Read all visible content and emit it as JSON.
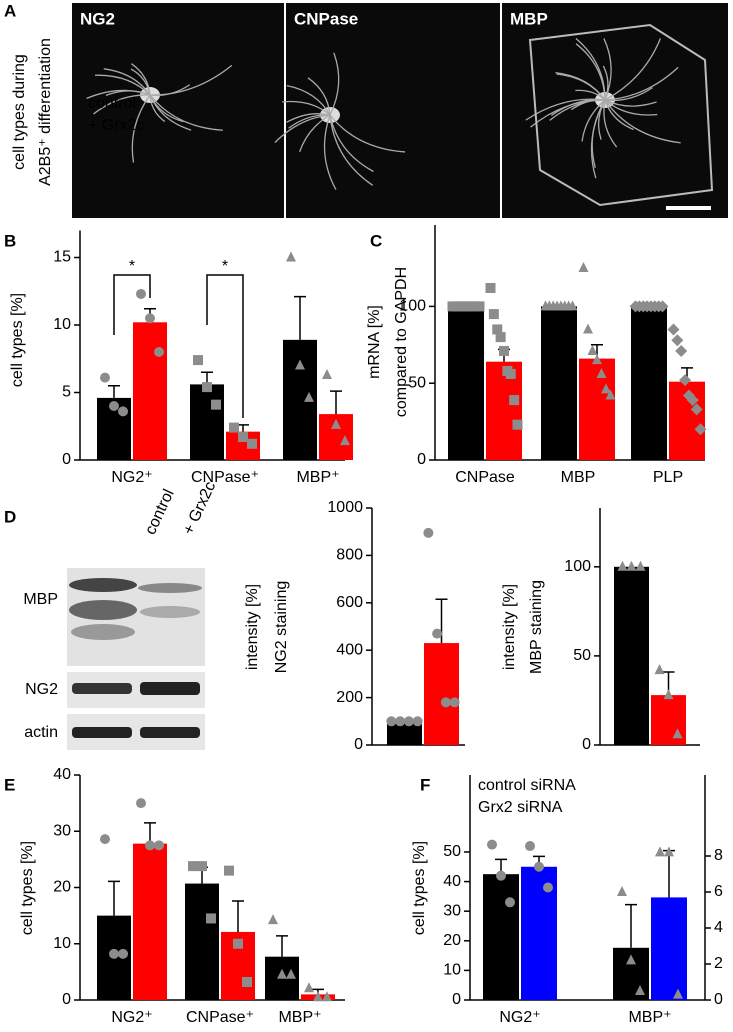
{
  "panel_labels": [
    "A",
    "B",
    "C",
    "D",
    "E",
    "F"
  ],
  "micrographs": {
    "side_label": [
      "cell types during",
      "A2B5⁺ differentiation"
    ],
    "images": [
      "NG2",
      "CNPase",
      "MBP"
    ]
  },
  "blot": {
    "columns": [
      "control",
      "+ Grx2c"
    ],
    "rows": [
      "MBP",
      "NG2",
      "actin"
    ]
  },
  "chart_data": [
    {
      "type": "bar",
      "ylabel": [
        "cell types [%]"
      ],
      "categories": [
        "NG2⁺",
        "CNPase⁺",
        "MBP⁺"
      ],
      "markers": [
        "circle",
        "square",
        "triangle"
      ],
      "ylim": [
        0,
        17
      ],
      "yticks": [
        0,
        5,
        10,
        15
      ],
      "annotations": [
        "*",
        "*"
      ],
      "series": [
        {
          "name": "control",
          "color": "#000000",
          "values": [
            4.6,
            5.6,
            8.9
          ],
          "errors": [
            0.9,
            0.9,
            3.2
          ],
          "points": [
            [
              6.1,
              4.0,
              3.6
            ],
            [
              7.4,
              5.4,
              4.1
            ],
            [
              15.0,
              7.0,
              4.6
            ]
          ]
        },
        {
          "name": "+ Grx2c",
          "color": "#ff0000",
          "values": [
            10.2,
            2.1,
            3.4
          ],
          "errors": [
            1.0,
            0.5,
            1.7
          ],
          "points": [
            [
              12.3,
              10.5,
              8.0
            ],
            [
              2.4,
              1.7,
              1.2
            ],
            [
              6.3,
              2.6,
              1.4
            ]
          ]
        }
      ]
    },
    {
      "type": "bar",
      "ylabel": [
        "mRNA [%]",
        "compared to GAPDH"
      ],
      "categories": [
        "CNPase",
        "MBP",
        "PLP"
      ],
      "markers": [
        "square",
        "triangle",
        "diamond"
      ],
      "ylim": [
        0,
        153
      ],
      "yticks": [
        0,
        50,
        100
      ],
      "series": [
        {
          "name": "control",
          "color": "#000000",
          "values": [
            100,
            100,
            100
          ],
          "errors": [
            0,
            0,
            0
          ],
          "points": [
            [
              100,
              100,
              100,
              100,
              100,
              100,
              100,
              100
            ],
            [
              100,
              100,
              100,
              100,
              100,
              100,
              100,
              100
            ],
            [
              100,
              100,
              100,
              100,
              100,
              100,
              100,
              100
            ]
          ]
        },
        {
          "name": "+ Grx2c",
          "color": "#ff0000",
          "values": [
            64,
            66,
            51
          ],
          "errors": [
            8,
            9,
            9
          ],
          "points": [
            [
              112,
              95,
              85,
              80,
              71,
              58,
              56,
              39,
              23
            ],
            [
              125,
              85,
              71,
              65,
              56,
              46,
              42
            ],
            [
              85,
              78,
              71,
              52,
              42,
              39,
              33,
              20
            ]
          ]
        }
      ]
    },
    {
      "type": "bar",
      "ylabel": [
        "intensity [%]",
        "NG2 staining"
      ],
      "markers": [
        "circle"
      ],
      "ylim": [
        0,
        1000
      ],
      "yticks": [
        0,
        200,
        400,
        600,
        800,
        1000
      ],
      "series": [
        {
          "name": "control",
          "color": "#000000",
          "values": [
            100
          ],
          "errors": [
            0
          ],
          "points": [
            [
              100,
              100,
              100,
              100
            ]
          ]
        },
        {
          "name": "+ Grx2c",
          "color": "#ff0000",
          "values": [
            430
          ],
          "errors": [
            185
          ],
          "points": [
            [
              895,
              470,
              180,
              180
            ]
          ]
        }
      ]
    },
    {
      "type": "bar",
      "ylabel": [
        "intensity [%]",
        "MBP staining"
      ],
      "markers": [
        "triangle"
      ],
      "ylim": [
        0,
        133
      ],
      "yticks": [
        0,
        50,
        100
      ],
      "series": [
        {
          "name": "control",
          "color": "#000000",
          "values": [
            100
          ],
          "errors": [
            0
          ],
          "points": [
            [
              100,
              100,
              100
            ]
          ]
        },
        {
          "name": "+ Grx2c",
          "color": "#ff0000",
          "values": [
            28
          ],
          "errors": [
            13
          ],
          "points": [
            [
              42,
              28,
              6
            ]
          ]
        }
      ]
    },
    {
      "type": "bar",
      "ylabel": [
        "cell types [%]"
      ],
      "categories": [
        "NG2⁺",
        "CNPase⁺",
        "MBP⁺"
      ],
      "markers": [
        "circle",
        "square",
        "triangle"
      ],
      "ylim": [
        0,
        40
      ],
      "yticks": [
        0,
        10,
        20,
        30,
        40
      ],
      "series": [
        {
          "name": "control",
          "color": "#000000",
          "values": [
            15.0,
            20.7,
            7.7
          ],
          "errors": [
            6.1,
            2.9,
            3.7
          ],
          "points": [
            [
              28.6,
              8.2,
              8.2
            ],
            [
              23.8,
              23.8,
              14.5
            ],
            [
              14.2,
              4.5,
              4.5
            ]
          ]
        },
        {
          "name": "+ Grx2c",
          "color": "#ff0000",
          "values": [
            27.8,
            12.1,
            1.0
          ],
          "errors": [
            3.7,
            5.5,
            0.9
          ],
          "points": [
            [
              35.0,
              27.5,
              27.5
            ],
            [
              23.0,
              10.0,
              3.2
            ],
            [
              2.1,
              0.5,
              0.5
            ]
          ]
        }
      ]
    },
    {
      "type": "bar",
      "ylabel": [
        "cell types [%]"
      ],
      "categories": [
        "NG2⁺",
        "MBP⁺"
      ],
      "markers": [
        "circle",
        "triangle"
      ],
      "category_axis": [
        "y",
        "y2"
      ],
      "ylim": [
        0,
        76
      ],
      "yticks": [
        0,
        10,
        20,
        30,
        40,
        50
      ],
      "y2lim": [
        0,
        12.5
      ],
      "y2ticks": [
        0,
        2,
        4,
        6,
        8
      ],
      "series": [
        {
          "name": "control siRNA",
          "color": "#000000",
          "values": [
            42.5,
            2.9
          ],
          "errors": [
            5.0,
            2.4
          ],
          "points": [
            [
              52.5,
              42.0,
              33.0
            ],
            [
              6.0,
              2.2,
              0.5
            ]
          ]
        },
        {
          "name": "Grx2 siRNA",
          "color": "#0000ff",
          "values": [
            45.0,
            5.7
          ],
          "errors": [
            3.5,
            2.6
          ],
          "points": [
            [
              52.0,
              45.0,
              38.0
            ],
            [
              8.2,
              8.2,
              0.3
            ]
          ]
        }
      ]
    }
  ]
}
